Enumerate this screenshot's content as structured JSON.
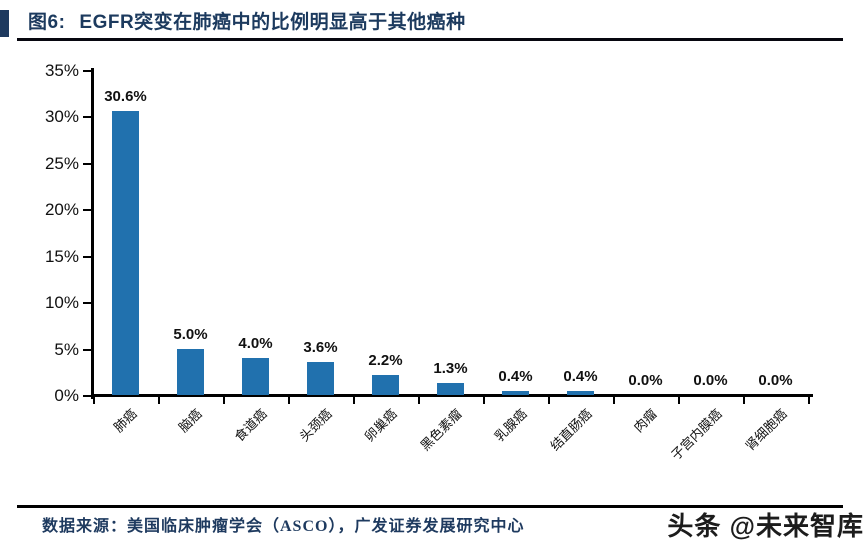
{
  "figure": {
    "label": "图6:",
    "title": "EGFR突变在肺癌中的比例明显高于其他癌种"
  },
  "chart_data": {
    "type": "bar",
    "title": "EGFR突变在肺癌中的比例明显高于其他癌种",
    "categories": [
      "肺癌",
      "脑癌",
      "食道癌",
      "头颈癌",
      "卵巢癌",
      "黑色素瘤",
      "乳腺癌",
      "结直肠癌",
      "肉瘤",
      "子宫内膜癌",
      "肾细胞癌"
    ],
    "values": [
      30.6,
      5.0,
      4.0,
      3.6,
      2.2,
      1.3,
      0.4,
      0.4,
      0.0,
      0.0,
      0.0
    ],
    "value_labels": [
      "30.6%",
      "5.0%",
      "4.0%",
      "3.6%",
      "2.2%",
      "1.3%",
      "0.4%",
      "0.4%",
      "0.0%",
      "0.0%",
      "0.0%"
    ],
    "y_ticks": [
      "35%",
      "30%",
      "25%",
      "20%",
      "15%",
      "10%",
      "5%",
      "0%"
    ],
    "ylim": [
      0,
      35
    ],
    "xlabel": "",
    "ylabel": "",
    "grid": false,
    "legend": "none",
    "bar_color": "#2171AE"
  },
  "theme": {
    "title_color": "#1C3A5E",
    "axis_color": "#000000",
    "source_color": "#1E3A5F"
  },
  "footer": {
    "source": "数据来源：美国临床肿瘤学会（ASCO），广发证券发展研究中心",
    "watermark": "头条 @未来智库"
  }
}
